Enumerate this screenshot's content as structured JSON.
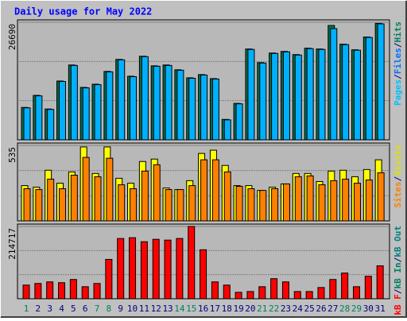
{
  "title": "Daily usage for May 2022",
  "days": {
    "labels": [
      "1",
      "2",
      "3",
      "4",
      "5",
      "6",
      "7",
      "8",
      "9",
      "10",
      "11",
      "12",
      "13",
      "14",
      "15",
      "16",
      "17",
      "18",
      "19",
      "20",
      "21",
      "22",
      "23",
      "24",
      "25",
      "26",
      "27",
      "28",
      "29",
      "30",
      "31"
    ],
    "colors": [
      "#008060",
      "#000080",
      "#000080",
      "#000080",
      "#000080",
      "#000080",
      "#008060",
      "#008060",
      "#000080",
      "#000080",
      "#000080",
      "#000080",
      "#000080",
      "#008060",
      "#008060",
      "#000080",
      "#000080",
      "#000080",
      "#000080",
      "#000080",
      "#008060",
      "#008060",
      "#000080",
      "#000080",
      "#000080",
      "#000080",
      "#000080",
      "#008060",
      "#008060",
      "#000080",
      "#000080"
    ]
  },
  "legend_separator": "/",
  "chart_data": [
    {
      "type": "bar",
      "ylim": [
        0,
        26690
      ],
      "yticks": [
        26690
      ],
      "grid_lines": [
        8897,
        17793
      ],
      "legend": [
        {
          "text": "Pages",
          "color": "#00c0ff"
        },
        {
          "text": "Files",
          "color": "#0070ff"
        },
        {
          "text": "Hits",
          "color": "#008060"
        }
      ],
      "series": [
        {
          "name": "Hits",
          "color": "#007050",
          "values": [
            7360,
            10090,
            7000,
            13350,
            16990,
            11900,
            12630,
            15530,
            18260,
            14440,
            18980,
            16800,
            16990,
            15900,
            14080,
            14810,
            13900,
            4640,
            8270,
            20620,
            17530,
            19710,
            20070,
            19350,
            20800,
            20620,
            25960,
            21710,
            20440,
            23340,
            26430
          ]
        },
        {
          "name": "Files",
          "color": "#00b0ff",
          "values": [
            7260,
            9990,
            6900,
            13250,
            16890,
            11800,
            12530,
            15430,
            18160,
            14340,
            18880,
            16700,
            16890,
            15800,
            13980,
            14710,
            13800,
            4540,
            8170,
            20520,
            17430,
            19610,
            19970,
            19250,
            20700,
            20520,
            25240,
            21610,
            20340,
            23240,
            26330
          ]
        }
      ]
    },
    {
      "type": "bar",
      "ylim": [
        0,
        535
      ],
      "yticks": [
        535
      ],
      "grid_lines": [
        178,
        357
      ],
      "legend": [
        {
          "text": "Sites",
          "color": "#ff8000"
        },
        {
          "text": "Visits",
          "color": "#e0e000"
        }
      ],
      "series": [
        {
          "name": "Visits",
          "color": "#ffff00",
          "values": [
            250,
            239,
            359,
            267,
            347,
            524,
            336,
            524,
            302,
            267,
            421,
            438,
            233,
            222,
            285,
            478,
            501,
            393,
            250,
            250,
            216,
            239,
            262,
            336,
            336,
            279,
            353,
            359,
            313,
            364,
            433
          ]
        },
        {
          "name": "Sites",
          "color": "#ff8000",
          "values": [
            228,
            222,
            296,
            228,
            324,
            450,
            313,
            444,
            256,
            228,
            353,
            398,
            222,
            222,
            250,
            433,
            433,
            347,
            245,
            228,
            216,
            228,
            262,
            313,
            319,
            256,
            285,
            296,
            267,
            290,
            341
          ]
        }
      ]
    },
    {
      "type": "bar",
      "ylim": [
        0,
        214717
      ],
      "yticks": [
        214717
      ],
      "grid_lines": [
        71572,
        143145
      ],
      "legend": [
        {
          "text": "kB F",
          "color": "#ff0000"
        },
        {
          "text": "kB In",
          "color": "#008060"
        },
        {
          "text": "kB Out",
          "color": "#008080"
        }
      ],
      "series": [
        {
          "name": "kB F",
          "color": "#ff0000",
          "values": [
            40560,
            45330,
            50100,
            47720,
            57260,
            35790,
            45330,
            116900,
            178930,
            181320,
            169390,
            176550,
            174160,
            178930,
            214717,
            145530,
            50100,
            40560,
            19090,
            21470,
            35790,
            59640,
            50100,
            21470,
            21470,
            33400,
            57260,
            76340,
            35790,
            66800,
            97820
          ]
        }
      ]
    }
  ]
}
